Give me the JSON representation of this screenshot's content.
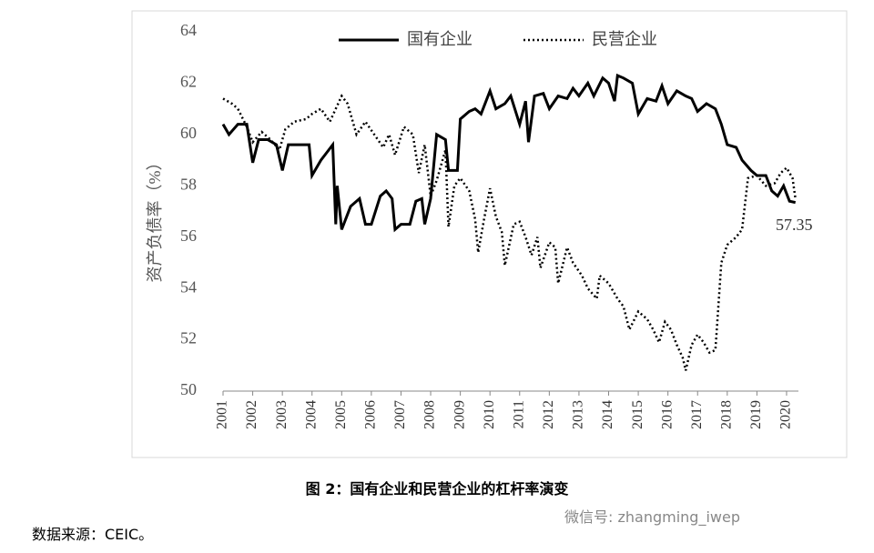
{
  "chart_data": {
    "type": "line",
    "y_label": "资产负债率（%）",
    "xlim": [
      2001,
      2020.4
    ],
    "xticks": [
      2001,
      2002,
      2003,
      2004,
      2005,
      2006,
      2007,
      2008,
      2009,
      2010,
      2011,
      2012,
      2013,
      2014,
      2015,
      2016,
      2017,
      2018,
      2019,
      2020
    ],
    "ylim": [
      50,
      64
    ],
    "yticks": [
      50,
      52,
      54,
      56,
      58,
      60,
      62,
      64
    ],
    "legend": "top",
    "annotation": "57.35",
    "series": [
      {
        "name": "国有企业",
        "color": "#000000",
        "line_style": "solid",
        "x": [
          2001.0,
          2001.2,
          2001.5,
          2001.8,
          2002.0,
          2002.2,
          2002.5,
          2002.8,
          2003.0,
          2003.2,
          2003.5,
          2003.9,
          2004.0,
          2004.3,
          2004.5,
          2004.7,
          2004.8,
          2004.85,
          2005.0,
          2005.3,
          2005.6,
          2005.8,
          2006.0,
          2006.3,
          2006.5,
          2006.7,
          2006.8,
          2007.0,
          2007.3,
          2007.5,
          2007.7,
          2007.8,
          2008.0,
          2008.2,
          2008.5,
          2008.6,
          2008.9,
          2009.0,
          2009.3,
          2009.5,
          2009.7,
          2010.0,
          2010.2,
          2010.5,
          2010.7,
          2011.0,
          2011.2,
          2011.3,
          2011.5,
          2011.8,
          2012.0,
          2012.3,
          2012.6,
          2012.8,
          2013.0,
          2013.3,
          2013.5,
          2013.8,
          2014.0,
          2014.2,
          2014.3,
          2014.5,
          2014.8,
          2015.0,
          2015.3,
          2015.6,
          2015.8,
          2016.0,
          2016.3,
          2016.6,
          2016.8,
          2017.0,
          2017.3,
          2017.6,
          2017.8,
          2018.0,
          2018.3,
          2018.5,
          2018.8,
          2019.0,
          2019.3,
          2019.5,
          2019.7,
          2019.9,
          2020.1,
          2020.3
        ],
        "values": [
          60.4,
          60.0,
          60.4,
          60.4,
          58.9,
          59.8,
          59.8,
          59.6,
          58.6,
          59.6,
          59.6,
          59.6,
          58.4,
          59.0,
          59.3,
          59.6,
          56.5,
          58.0,
          56.3,
          57.2,
          57.5,
          56.5,
          56.5,
          57.6,
          57.8,
          57.5,
          56.3,
          56.5,
          56.5,
          57.4,
          57.5,
          56.5,
          57.5,
          60.0,
          59.8,
          58.6,
          58.6,
          60.6,
          60.9,
          61.0,
          60.8,
          61.7,
          61.0,
          61.2,
          61.5,
          60.4,
          61.3,
          59.7,
          61.5,
          61.6,
          61.0,
          61.5,
          61.4,
          61.8,
          61.5,
          62.0,
          61.5,
          62.2,
          62.0,
          61.3,
          62.3,
          62.2,
          62.0,
          60.8,
          61.4,
          61.3,
          61.9,
          61.2,
          61.7,
          61.5,
          61.4,
          60.9,
          61.2,
          61.0,
          60.4,
          59.6,
          59.5,
          59.0,
          58.6,
          58.4,
          58.4,
          57.8,
          57.6,
          58.0,
          57.4,
          57.35
        ]
      },
      {
        "name": "民营企业",
        "color": "#000000",
        "line_style": "dotted",
        "x": [
          2001.0,
          2001.3,
          2001.5,
          2001.8,
          2002.0,
          2002.3,
          2002.6,
          2002.9,
          2003.1,
          2003.4,
          2003.8,
          2004.0,
          2004.3,
          2004.6,
          2004.8,
          2005.0,
          2005.2,
          2005.5,
          2005.8,
          2006.1,
          2006.4,
          2006.6,
          2006.8,
          2007.1,
          2007.4,
          2007.6,
          2007.8,
          2008.0,
          2008.2,
          2008.5,
          2008.6,
          2008.8,
          2009.0,
          2009.3,
          2009.5,
          2009.6,
          2009.8,
          2010.0,
          2010.2,
          2010.4,
          2010.5,
          2010.8,
          2011.0,
          2011.2,
          2011.4,
          2011.6,
          2011.7,
          2012.0,
          2012.2,
          2012.3,
          2012.6,
          2012.8,
          2013.1,
          2013.3,
          2013.6,
          2013.7,
          2014.0,
          2014.3,
          2014.5,
          2014.7,
          2015.0,
          2015.3,
          2015.5,
          2015.7,
          2015.9,
          2016.1,
          2016.3,
          2016.5,
          2016.6,
          2016.8,
          2017.0,
          2017.2,
          2017.4,
          2017.6,
          2017.8,
          2018.0,
          2018.3,
          2018.5,
          2018.7,
          2019.0,
          2019.3,
          2019.6,
          2019.8,
          2020.0,
          2020.2,
          2020.3
        ],
        "values": [
          61.4,
          61.2,
          61.0,
          60.3,
          59.7,
          60.1,
          59.8,
          59.4,
          60.2,
          60.5,
          60.6,
          60.8,
          61.0,
          60.5,
          61.0,
          61.5,
          61.2,
          60.0,
          60.5,
          60.0,
          59.5,
          60.0,
          59.2,
          60.3,
          60.0,
          58.5,
          59.6,
          57.6,
          58.2,
          59.4,
          56.4,
          58.0,
          58.3,
          57.8,
          56.7,
          55.4,
          56.7,
          57.9,
          56.8,
          56.2,
          54.9,
          56.5,
          56.6,
          56.0,
          55.3,
          56.0,
          54.8,
          55.8,
          55.6,
          54.2,
          55.6,
          55.0,
          54.5,
          54.0,
          53.6,
          54.5,
          54.2,
          53.6,
          53.3,
          52.4,
          53.1,
          52.8,
          52.4,
          51.9,
          52.7,
          52.4,
          51.8,
          51.3,
          50.8,
          51.8,
          52.2,
          51.9,
          51.5,
          51.6,
          55.0,
          55.7,
          56.0,
          56.3,
          58.3,
          58.4,
          58.0,
          58.1,
          58.5,
          58.7,
          58.3,
          57.5
        ]
      }
    ]
  },
  "caption": "图 2：国有企业和民营企业的杠杆率演变",
  "watermark": "微信号: zhangming_iwep",
  "source": "数据来源：CEIC。"
}
